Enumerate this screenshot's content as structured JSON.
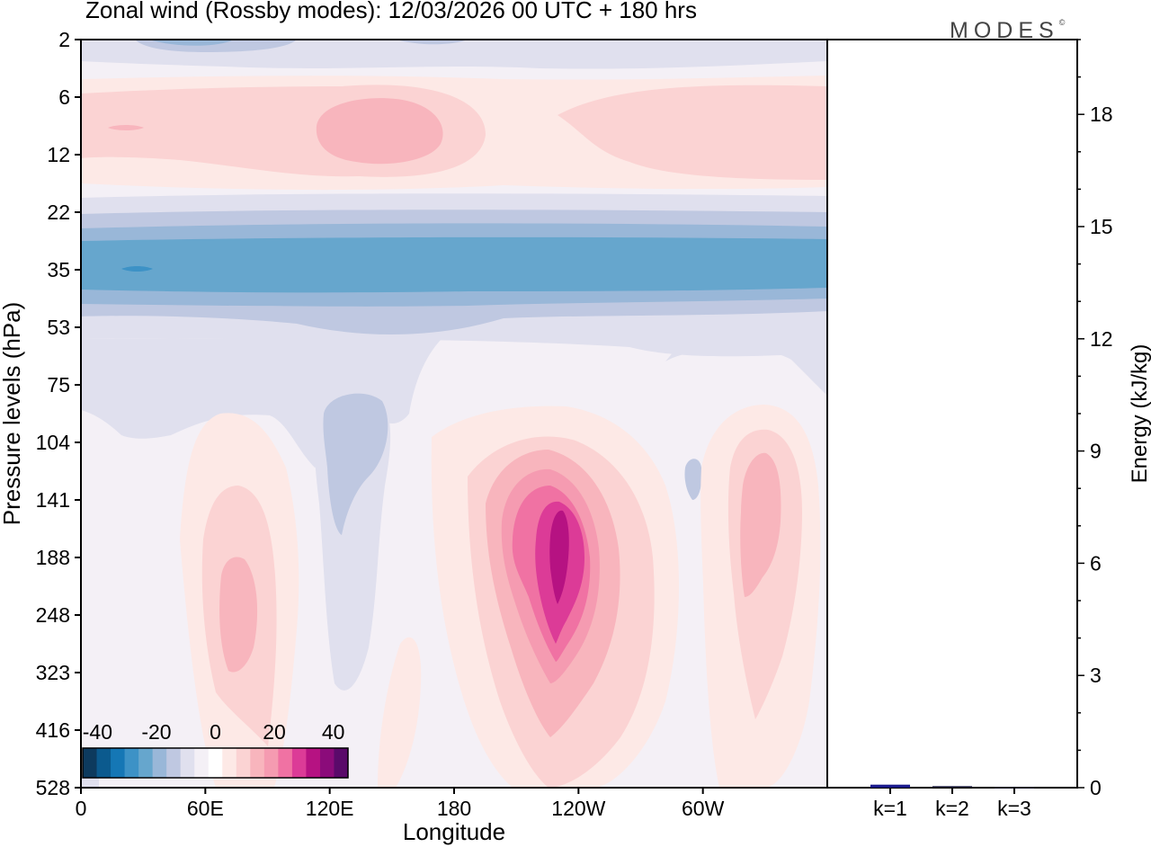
{
  "header": {
    "title": "Zonal wind (Rossby modes):  12/03/2026  00 UTC  + 180 hrs",
    "logo_text": "MODES",
    "logo_mark": "©"
  },
  "chart_data": [
    {
      "type": "heatmap",
      "title": "Zonal wind (Rossby modes)",
      "xlabel": "Longitude",
      "ylabel": "Pressure levels (hPa)",
      "x_ticks": [
        "0",
        "60E",
        "120E",
        "180",
        "120W",
        "60W"
      ],
      "x_tick_degrees": [
        0,
        60,
        120,
        180,
        240,
        300
      ],
      "xlim": [
        0,
        360
      ],
      "y_ticks": [
        "2",
        "6",
        "12",
        "22",
        "35",
        "53",
        "75",
        "104",
        "141",
        "188",
        "248",
        "323",
        "416",
        "528"
      ],
      "colorbar": {
        "tick_labels": [
          "-40",
          "-20",
          "0",
          "20",
          "40"
        ],
        "levels": [
          -45,
          -40,
          -35,
          -30,
          -25,
          -20,
          -15,
          -10,
          -5,
          0,
          5,
          10,
          15,
          20,
          25,
          30,
          35,
          40,
          45
        ],
        "colors": [
          "#0d3a5e",
          "#0b5a8e",
          "#1577b5",
          "#3d92c6",
          "#66a6cd",
          "#99b7d8",
          "#bfc8e1",
          "#e0e0ee",
          "#f4f0f6",
          "#ffffff",
          "#fde9e6",
          "#fbd3d3",
          "#f8b5bd",
          "#f59bb1",
          "#f072a3",
          "#dc3b97",
          "#b61282",
          "#8b0b7a",
          "#5a0a6a"
        ]
      },
      "features": [
        {
          "name": "upper-easterly-band",
          "level_hPa": 35,
          "value_approx": -22
        },
        {
          "name": "stratospheric-westerly",
          "level_hPa": 9,
          "value_approx": 12
        },
        {
          "name": "westerly-max-120W",
          "lon": 248,
          "level_hPa": 188,
          "value_approx": 32
        },
        {
          "name": "westerly-max-90E",
          "lon": 75,
          "level_hPa": 248,
          "value_approx": 12
        },
        {
          "name": "westerly-max-30W",
          "lon": 335,
          "level_hPa": 141,
          "value_approx": 12
        },
        {
          "name": "easterly-130E",
          "lon": 130,
          "level_hPa": 120,
          "value_approx": -6
        }
      ]
    },
    {
      "type": "bar",
      "categories": [
        "k=1",
        "k=2",
        "k=3"
      ],
      "values": [
        0.08,
        0.04,
        0.02
      ],
      "ylabel": "Energy (kJ/kg)",
      "ylim": [
        0,
        20
      ],
      "y_ticks": [
        "0",
        "3",
        "6",
        "9",
        "12",
        "15",
        "18"
      ],
      "bar_colors": [
        "#1a1a8c",
        "#111133",
        "#111133"
      ]
    }
  ]
}
